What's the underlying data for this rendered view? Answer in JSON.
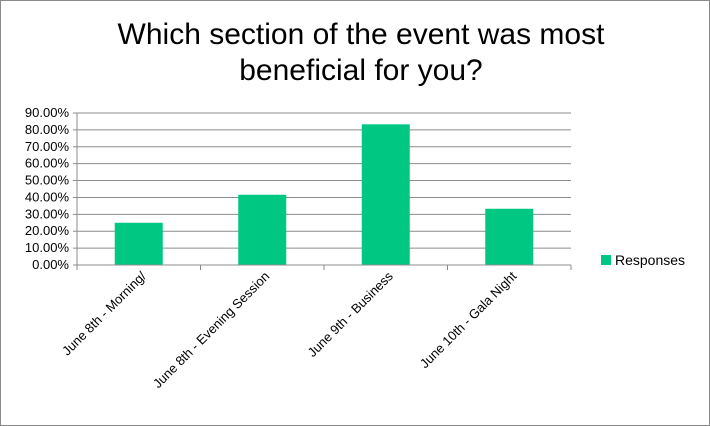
{
  "colors": {
    "bar": "#00c882",
    "grid": "#8c8c8c",
    "axis": "#8c8c8c",
    "background": "#ffffff"
  },
  "chart_data": {
    "type": "bar",
    "title": "Which section of the event was most beneficial for you?",
    "categories": [
      "June 8th - Morning/",
      "June 8th - Evening Session",
      "June 9th - Business",
      "June 10th - Gala Night"
    ],
    "series": [
      {
        "name": "Responses",
        "values": [
          0.25,
          0.416,
          0.833,
          0.333
        ]
      }
    ],
    "y_ticks": [
      "0.00%",
      "10.00%",
      "20.00%",
      "30.00%",
      "40.00%",
      "50.00%",
      "60.00%",
      "70.00%",
      "80.00%",
      "90.00%"
    ],
    "ylim": [
      0,
      0.9
    ],
    "grid": true,
    "legend_position": "right"
  }
}
